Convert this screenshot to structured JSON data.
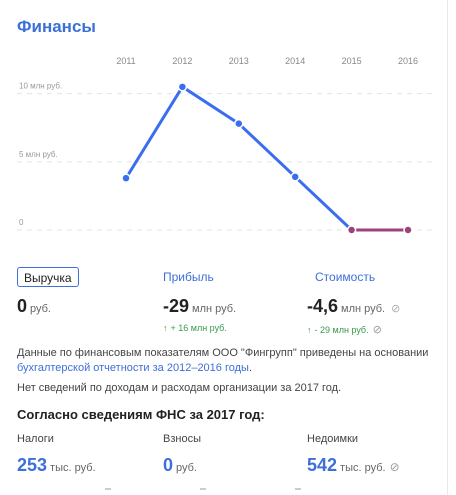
{
  "title": "Финансы",
  "chart_data": {
    "type": "line",
    "x": [
      "2011",
      "2012",
      "2013",
      "2014",
      "2015",
      "2016"
    ],
    "ytick_labels": [
      "10 млн руб.",
      "5 млн руб.",
      "0"
    ],
    "ytick_values": [
      10,
      5,
      0
    ],
    "ylim": [
      0,
      11
    ],
    "series": [
      {
        "values": [
          3.8,
          10.5,
          7.8,
          3.9,
          0,
          0
        ],
        "color": "#3a6df0"
      }
    ],
    "negative_segment_color": "#a0407f",
    "grid": true
  },
  "metrics": [
    {
      "label": "Выручка",
      "value": "0",
      "unit": "руб.",
      "delta": ""
    },
    {
      "label": "Прибыль",
      "value": "-29",
      "unit": "млн руб.",
      "delta": "+ 16 млн руб."
    },
    {
      "label": "Стоимость",
      "value": "-4,6",
      "unit": "млн руб.",
      "delta": "- 29 млн руб."
    }
  ],
  "info": {
    "text1": "Данные по финансовым показателям ООО \"Фингрупп\" приведены на основании ",
    "link": "бухгалтерской отчетности за 2012–2016 годы",
    "text1_end": ".",
    "text2": "Нет сведений по доходам и расходам организации за 2017 год."
  },
  "fns": {
    "title": "Согласно сведениям ФНС за 2017 год:",
    "items": [
      {
        "label": "Налоги",
        "value": "253",
        "unit": "тыс. руб."
      },
      {
        "label": "Взносы",
        "value": "0",
        "unit": "руб."
      },
      {
        "label": "Недоимки",
        "value": "542",
        "unit": "тыс. руб."
      }
    ]
  },
  "colors": {
    "accent": "#3d6fd8",
    "positive": "#3a9a4a"
  }
}
